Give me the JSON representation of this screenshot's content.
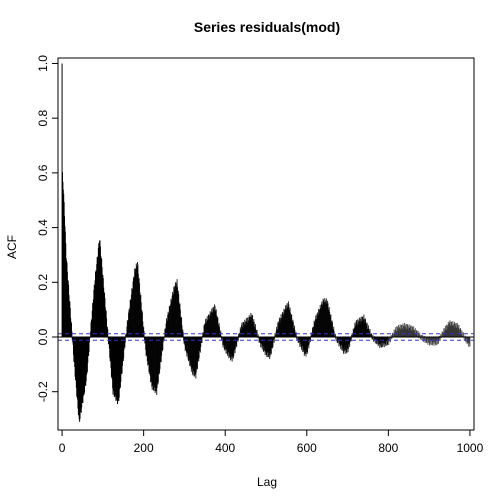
{
  "chart_data": {
    "type": "bar",
    "title": "Series  residuals(mod)",
    "xlabel": "Lag",
    "ylabel": "ACF",
    "xlim": [
      -10,
      1010
    ],
    "ylim": [
      -0.34,
      1.02
    ],
    "xticks": [
      0,
      200,
      400,
      600,
      800,
      1000
    ],
    "yticks": [
      -0.2,
      0.0,
      0.2,
      0.4,
      0.6,
      0.8,
      1.0
    ],
    "xtick_labels": [
      "0",
      "200",
      "400",
      "600",
      "800",
      "1000"
    ],
    "ytick_labels": [
      "-0.2",
      "0.0",
      "0.2",
      "0.4",
      "0.6",
      "0.8",
      "1.0"
    ],
    "lags": [
      0,
      1000
    ],
    "acf_envelope": {
      "description_of_values": "approximate ACF values at selected lags",
      "lag": [
        0,
        1,
        3,
        6,
        10,
        20,
        30,
        42,
        60,
        80,
        92,
        110,
        125,
        138,
        160,
        178,
        185,
        205,
        220,
        232,
        255,
        275,
        282,
        300,
        320,
        328,
        350,
        370,
        375,
        395,
        410,
        418,
        440,
        460,
        465,
        485,
        500,
        510,
        530,
        550,
        555,
        575,
        595,
        600,
        620,
        640,
        650,
        670,
        690,
        700,
        720,
        740,
        760,
        780,
        800,
        820,
        840,
        860,
        880,
        900,
        920,
        940,
        950,
        970,
        990,
        1000
      ],
      "acf": [
        1.0,
        0.59,
        0.55,
        0.45,
        0.3,
        0.1,
        -0.1,
        -0.31,
        -0.15,
        0.2,
        0.36,
        0.05,
        -0.2,
        -0.24,
        0.05,
        0.24,
        0.27,
        -0.05,
        -0.18,
        -0.2,
        0.05,
        0.18,
        0.2,
        -0.03,
        -0.13,
        -0.14,
        0.05,
        0.1,
        0.11,
        -0.03,
        -0.07,
        -0.08,
        0.04,
        0.07,
        0.08,
        -0.02,
        -0.06,
        -0.07,
        0.05,
        0.11,
        0.12,
        0.0,
        -0.06,
        -0.06,
        0.06,
        0.13,
        0.13,
        0.0,
        -0.05,
        -0.05,
        0.05,
        0.07,
        0.0,
        -0.03,
        -0.02,
        0.03,
        0.04,
        0.03,
        0.0,
        -0.02,
        -0.02,
        0.03,
        0.05,
        0.04,
        -0.01,
        -0.03
      ]
    },
    "confidence_band": [
      -0.012,
      0.012
    ],
    "bar_color": "#000000",
    "ci_color": "#3333cc",
    "zero_line_color": "#000000",
    "grid": false,
    "legend": "none"
  }
}
